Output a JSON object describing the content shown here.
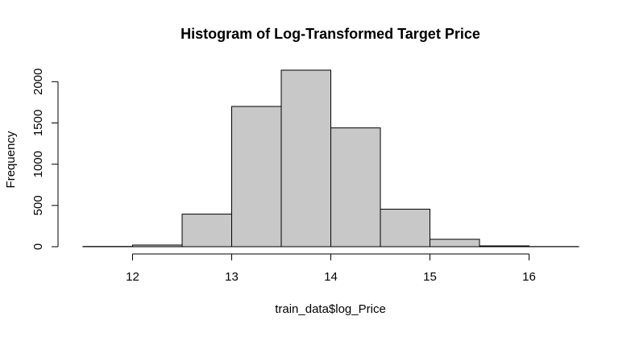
{
  "chart_data": {
    "type": "bar",
    "title": "Histogram of Log-Transformed Target Price",
    "xlabel": "train_data$log_Price",
    "ylabel": "Frequency",
    "bins": [
      {
        "start": 11.5,
        "end": 12.0,
        "count": 3
      },
      {
        "start": 12.0,
        "end": 12.5,
        "count": 20
      },
      {
        "start": 12.5,
        "end": 13.0,
        "count": 395
      },
      {
        "start": 13.0,
        "end": 13.5,
        "count": 1700
      },
      {
        "start": 13.5,
        "end": 14.0,
        "count": 2140
      },
      {
        "start": 14.0,
        "end": 14.5,
        "count": 1440
      },
      {
        "start": 14.5,
        "end": 15.0,
        "count": 455
      },
      {
        "start": 15.0,
        "end": 15.5,
        "count": 90
      },
      {
        "start": 15.5,
        "end": 16.0,
        "count": 10
      },
      {
        "start": 16.0,
        "end": 16.5,
        "count": 2
      }
    ],
    "xticks": [
      12,
      13,
      14,
      15,
      16
    ],
    "yticks": [
      0,
      500,
      1000,
      1500,
      2000
    ],
    "xlim": [
      11.5,
      16.5
    ],
    "ylim": [
      0,
      2140
    ],
    "bar_fill": "#c8c8c8",
    "bar_stroke": "#000000"
  }
}
